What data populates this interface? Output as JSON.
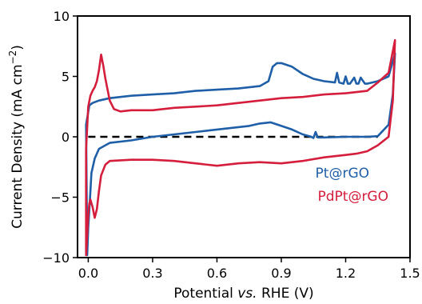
{
  "chart_data": {
    "type": "line",
    "xlabel": {
      "pre": "Potential ",
      "italic": "vs.",
      "post": " RHE (V)"
    },
    "ylabel": {
      "pre": "Current Density (mA cm",
      "sup": "−2",
      "post": ")"
    },
    "xlim": [
      -0.05,
      1.5
    ],
    "ylim": [
      -10,
      10
    ],
    "xticks": [
      0.0,
      0.3,
      0.6,
      0.9,
      1.2,
      1.5
    ],
    "xtick_labels": [
      "0.0",
      "0.3",
      "0.6",
      "0.9",
      "1.2",
      "1.5"
    ],
    "yticks": [
      -10,
      -5,
      0,
      5,
      10
    ],
    "ytick_labels": [
      "−10",
      "−5",
      "0",
      "5",
      "10"
    ],
    "grid": false,
    "legend_position": "center-right",
    "reference_line": {
      "y": 0,
      "style": "dashed",
      "color": "#000000"
    },
    "series": [
      {
        "name": "Pt@rGO",
        "color": "#1f5fa8",
        "x": [
          -0.01,
          0.005,
          0.02,
          0.05,
          0.1,
          0.15,
          0.2,
          0.3,
          0.4,
          0.5,
          0.6,
          0.7,
          0.8,
          0.84,
          0.86,
          0.88,
          0.9,
          0.95,
          1.0,
          1.05,
          1.1,
          1.15,
          1.16,
          1.17,
          1.19,
          1.2,
          1.21,
          1.22,
          1.24,
          1.25,
          1.26,
          1.27,
          1.29,
          1.3,
          1.35,
          1.4,
          1.43,
          1.42,
          1.4,
          1.35,
          1.3,
          1.25,
          1.2,
          1.1,
          1.07,
          1.06,
          1.05,
          1.04,
          1.03,
          1.0,
          0.95,
          0.9,
          0.85,
          0.8,
          0.75,
          0.7,
          0.6,
          0.5,
          0.4,
          0.3,
          0.2,
          0.1,
          0.05,
          0.03,
          0.015,
          0.005,
          0.0,
          -0.005
        ],
        "y": [
          1.0,
          2.6,
          2.8,
          3.0,
          3.2,
          3.3,
          3.4,
          3.5,
          3.6,
          3.8,
          3.9,
          4.0,
          4.2,
          4.6,
          5.8,
          6.1,
          6.1,
          5.8,
          5.2,
          4.8,
          4.6,
          4.5,
          5.3,
          4.5,
          4.4,
          5.0,
          4.4,
          4.4,
          4.9,
          4.4,
          4.4,
          4.9,
          4.4,
          4.4,
          4.6,
          5.0,
          6.9,
          3.5,
          1.0,
          0.05,
          0.0,
          0.0,
          0.0,
          -0.05,
          -0.05,
          0.4,
          -0.1,
          0.0,
          0.05,
          0.2,
          0.6,
          0.9,
          1.2,
          1.1,
          0.9,
          0.8,
          0.6,
          0.4,
          0.2,
          0.0,
          -0.3,
          -0.5,
          -1.0,
          -1.8,
          -3.0,
          -6.0,
          -7.5,
          -9.8
        ]
      },
      {
        "name": "PdPt@rGO",
        "color": "#d41e3c",
        "x": [
          -0.01,
          0.0,
          0.01,
          0.02,
          0.03,
          0.04,
          0.05,
          0.06,
          0.07,
          0.08,
          0.1,
          0.12,
          0.15,
          0.2,
          0.3,
          0.4,
          0.5,
          0.6,
          0.7,
          0.8,
          0.9,
          1.0,
          1.1,
          1.2,
          1.3,
          1.35,
          1.4,
          1.43,
          1.42,
          1.4,
          1.35,
          1.3,
          1.25,
          1.2,
          1.1,
          1.0,
          0.9,
          0.8,
          0.7,
          0.6,
          0.5,
          0.4,
          0.3,
          0.2,
          0.1,
          0.08,
          0.06,
          0.05,
          0.04,
          0.03,
          0.02,
          0.01,
          0.005,
          0.0,
          -0.01
        ],
        "y": [
          -1.0,
          2.5,
          3.4,
          3.8,
          4.1,
          4.6,
          5.5,
          6.8,
          5.9,
          4.8,
          3.0,
          2.3,
          2.1,
          2.2,
          2.2,
          2.4,
          2.5,
          2.6,
          2.8,
          3.0,
          3.2,
          3.3,
          3.5,
          3.6,
          3.8,
          4.5,
          5.3,
          8.0,
          3.0,
          0.0,
          -0.7,
          -1.2,
          -1.4,
          -1.5,
          -1.7,
          -2.0,
          -2.2,
          -2.1,
          -2.2,
          -2.4,
          -2.2,
          -2.0,
          -1.9,
          -1.9,
          -2.0,
          -2.3,
          -3.2,
          -4.5,
          -6.0,
          -6.7,
          -5.8,
          -5.2,
          -5.5,
          -6.5,
          -9.8
        ]
      }
    ]
  }
}
